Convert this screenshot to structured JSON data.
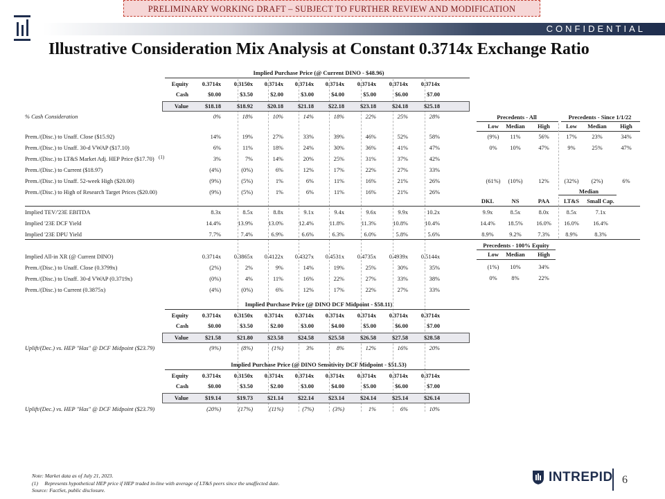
{
  "banner": "PRELIMINARY WORKING DRAFT – SUBJECT TO FURTHER REVIEW AND MODIFICATION",
  "confidential": "CONFIDENTIAL",
  "title": "Illustrative Consideration Mix Analysis at Constant 0.3714x Exchange Ratio",
  "cols": [
    "0.3714x",
    "0.3150x",
    "0.3714x",
    "0.3714x",
    "0.3714x",
    "0.3714x",
    "0.3714x",
    "0.3714x"
  ],
  "cash": [
    "$0.00",
    "$3.50",
    "$2.00",
    "$3.00",
    "$4.00",
    "$5.00",
    "$6.00",
    "$7.00"
  ],
  "labels": {
    "equity": "Equity",
    "cash": "Cash",
    "value": "Value"
  },
  "block1": {
    "header": "Implied Purchase Price (@ Current DINO - $48.96)",
    "value": [
      "$18.18",
      "$18.92",
      "$20.18",
      "$21.18",
      "$22.18",
      "$23.18",
      "$24.18",
      "$25.18"
    ],
    "cash_pct_label": "% Cash Consideration",
    "cash_pct": [
      "0%",
      "18%",
      "10%",
      "14%",
      "18%",
      "22%",
      "25%",
      "28%"
    ]
  },
  "prem_rows": [
    {
      "label": "Prem./(Disc.) to Unaff. Close ($15.92)",
      "sup": "",
      "v": [
        "14%",
        "19%",
        "27%",
        "33%",
        "39%",
        "46%",
        "52%",
        "58%"
      ]
    },
    {
      "label": "Prem./(Disc.) to Unaff. 30-d VWAP ($17.10)",
      "sup": "",
      "v": [
        "6%",
        "11%",
        "18%",
        "24%",
        "30%",
        "36%",
        "41%",
        "47%"
      ]
    },
    {
      "label": "Prem./(Disc.) to LT&S Market Adj. HEP Price ($17.70)",
      "sup": "(1)",
      "v": [
        "3%",
        "7%",
        "14%",
        "20%",
        "25%",
        "31%",
        "37%",
        "42%"
      ]
    },
    {
      "label": "Prem./(Disc.) to Current ($18.97)",
      "sup": "",
      "v": [
        "(4%)",
        "(0%)",
        "6%",
        "12%",
        "17%",
        "22%",
        "27%",
        "33%"
      ]
    },
    {
      "label": "Prem./(Disc.) to Unaff. 52-week High ($20.00)",
      "sup": "",
      "v": [
        "(9%)",
        "(5%)",
        "1%",
        "6%",
        "11%",
        "16%",
        "21%",
        "26%"
      ]
    },
    {
      "label": "Prem./(Disc.) to High of Research Target Prices ($20.00)",
      "sup": "",
      "v": [
        "(9%)",
        "(5%)",
        "1%",
        "6%",
        "11%",
        "16%",
        "21%",
        "26%"
      ]
    }
  ],
  "multiple_rows": [
    {
      "label": "Implied TEV/'23E EBITDA",
      "v": [
        "8.3x",
        "8.5x",
        "8.8x",
        "9.1x",
        "9.4x",
        "9.6x",
        "9.9x",
        "10.2x"
      ]
    },
    {
      "label": "Implied '23E DCF Yield",
      "v": [
        "14.4%",
        "13.9%",
        "13.0%",
        "12.4%",
        "11.8%",
        "11.3%",
        "10.8%",
        "10.4%"
      ]
    },
    {
      "label": "Implied '23E DPU Yield",
      "v": [
        "7.7%",
        "7.4%",
        "6.9%",
        "6.6%",
        "6.3%",
        "6.0%",
        "5.8%",
        "5.6%"
      ]
    }
  ],
  "xr_rows": [
    {
      "label": "Implied All-in XR (@ Current DINO)",
      "v": [
        "0.3714x",
        "0.3865x",
        "0.4122x",
        "0.4327x",
        "0.4531x",
        "0.4735x",
        "0.4939x",
        "0.5144x"
      ]
    },
    {
      "label": "Prem./(Disc.) to Unaff. Close (0.3799x)",
      "v": [
        "(2%)",
        "2%",
        "9%",
        "14%",
        "19%",
        "25%",
        "30%",
        "35%"
      ]
    },
    {
      "label": "Prem./(Disc.) to Unaff. 30-d VWAP (0.3719x)",
      "v": [
        "(0%)",
        "4%",
        "11%",
        "16%",
        "22%",
        "27%",
        "33%",
        "38%"
      ]
    },
    {
      "label": "Prem./(Disc.) to Current (0.3875x)",
      "v": [
        "(4%)",
        "(0%)",
        "6%",
        "12%",
        "17%",
        "22%",
        "27%",
        "33%"
      ]
    }
  ],
  "block2": {
    "header": "Implied Purchase Price (@ DINO DCF Midpoint - $58.11)",
    "value": [
      "$21.58",
      "$21.80",
      "$23.58",
      "$24.58",
      "$25.58",
      "$26.58",
      "$27.58",
      "$28.58"
    ],
    "uplift_label": "Uplift/(Dec.) vs. HEP \"Has\" @ DCF Midpoint ($23.79)",
    "uplift": [
      "(9%)",
      "(8%)",
      "(1%)",
      "3%",
      "8%",
      "12%",
      "16%",
      "20%"
    ]
  },
  "block3": {
    "header": "Implied Purchase Price (@ DINO Sensitivity DCF Midpoint - $51.53)",
    "value": [
      "$19.14",
      "$19.73",
      "$21.14",
      "$22.14",
      "$23.14",
      "$24.14",
      "$25.14",
      "$26.14"
    ],
    "uplift_label": "Uplift/(Dec.) vs. HEP \"Has\" @ DCF Midpoint ($23.79)",
    "uplift": [
      "(20%)",
      "(17%)",
      "(11%)",
      "(7%)",
      "(3%)",
      "1%",
      "6%",
      "10%"
    ]
  },
  "precedents": {
    "all_header": "Precedents - All",
    "since_header": "Precedents - Since 1/1/22",
    "cols": [
      "Low",
      "Median",
      "High"
    ],
    "rows": [
      {
        "all": [
          "(9%)",
          "11%",
          "56%"
        ],
        "since": [
          "17%",
          "23%",
          "34%"
        ]
      },
      {
        "all": [
          "0%",
          "10%",
          "47%"
        ],
        "since": [
          "9%",
          "25%",
          "47%"
        ]
      },
      {
        "all": [
          "(61%)",
          "(10%)",
          "12%"
        ],
        "since": [
          "(32%)",
          "(2%)",
          "6%"
        ]
      }
    ]
  },
  "peers": {
    "median_label": "Median",
    "cols": [
      "DKL",
      "NS",
      "PAA",
      "LT&S",
      "Small Cap."
    ],
    "rows": [
      [
        "9.9x",
        "8.5x",
        "8.0x",
        "8.5x",
        "7.1x"
      ],
      [
        "14.4%",
        "18.5%",
        "16.0%",
        "16.0%",
        "16.4%"
      ],
      [
        "8.9%",
        "9.2%",
        "7.3%",
        "8.9%",
        "8.3%"
      ]
    ]
  },
  "equity_prec": {
    "header": "Precedents - 100% Equity",
    "cols": [
      "Low",
      "Median",
      "High"
    ],
    "rows": [
      [
        "(1%)",
        "10%",
        "34%"
      ],
      [
        "0%",
        "8%",
        "22%"
      ]
    ]
  },
  "footer": {
    "note": "Note: Market data as of July 21, 2023.",
    "fn1_num": "(1)",
    "fn1": "Represents hypothetical HEP price if HEP traded in-line with average of LT&S peers since the unaffected date.",
    "source": "Source: FactSet, public disclosure."
  },
  "brand": "INTREPID",
  "page": "6"
}
